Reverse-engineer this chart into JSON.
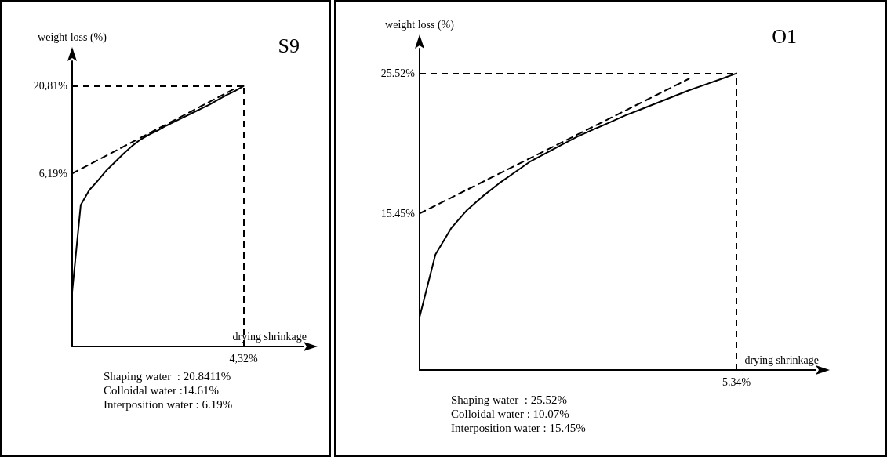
{
  "chart_data": [
    {
      "type": "line",
      "title": "S9",
      "xlabel": "drying shrinkage",
      "ylabel": "weight loss (%)",
      "categories": [
        null,
        null,
        null,
        null,
        null,
        null,
        null,
        null,
        null,
        null,
        null,
        null,
        null,
        null,
        null,
        null,
        null,
        null,
        null,
        null,
        null,
        null,
        null,
        null,
        null,
        null,
        null,
        null
      ],
      "ylim": [
        -22.8,
        25
      ],
      "yticks": [
        {
          "value": 6.19,
          "label": "6,19%"
        },
        {
          "value": 20.81,
          "label": "20,81%"
        }
      ],
      "grid": false,
      "marker": "none",
      "series": [
        {
          "color": "#000000",
          "values": [
            -13.7,
            0.9,
            3.4,
            5.0,
            6.7,
            8.1,
            9.5,
            10.8,
            11.9,
            12.7,
            13.4,
            14.2,
            14.9,
            15.6,
            16.3,
            17.0,
            17.7,
            18.5,
            19.3,
            20.0,
            20.81,
            null,
            null,
            null,
            null,
            null,
            null,
            null
          ]
        },
        {
          "color": "#000000",
          "line_style": "dashed",
          "values": [
            6.19,
            null,
            null,
            null,
            null,
            null,
            null,
            null,
            null,
            null,
            null,
            null,
            null,
            null,
            null,
            null,
            null,
            null,
            null,
            20.41,
            null,
            null,
            null,
            null,
            null,
            null,
            null,
            null
          ]
        }
      ],
      "ref_lines": [
        {
          "axis": "y",
          "value": 20.81,
          "color": "#000000",
          "line_style": "dashed"
        },
        {
          "axis": "x",
          "color": "#000000",
          "line_style": "dashed"
        }
      ],
      "annotations": [
        {
          "text": "4,32%"
        },
        "Shaping water  : 20.8411%",
        "Colloidal water :14.61%",
        "Interposition water : 6.19%"
      ]
    },
    {
      "type": "line",
      "title": "O1",
      "xlabel": "drying shrinkage",
      "ylabel": "weight loss (%)",
      "categories": [
        null,
        null,
        null,
        null,
        null,
        null,
        null,
        null,
        null,
        null,
        null,
        null,
        null,
        null,
        null,
        null,
        null,
        null,
        null,
        null,
        null,
        null,
        null,
        null,
        null,
        null
      ],
      "ylim": [
        4.2,
        27.3
      ],
      "yticks": [
        {
          "value": 15.45,
          "label": "15.45%"
        },
        {
          "value": 25.52,
          "label": "25.52%"
        }
      ],
      "grid": false,
      "marker": "none",
      "series": [
        {
          "color": "#000000",
          "values": [
            8.0,
            12.5,
            14.4,
            15.7,
            16.7,
            17.6,
            18.4,
            19.2,
            19.8,
            20.4,
            21.0,
            21.5,
            22.0,
            22.5,
            22.95,
            23.4,
            23.85,
            24.3,
            24.7,
            25.1,
            25.52,
            null,
            null,
            null,
            null,
            null
          ]
        },
        {
          "color": "#000000",
          "line_style": "dashed",
          "values": [
            15.45,
            null,
            null,
            null,
            null,
            null,
            null,
            null,
            null,
            null,
            null,
            null,
            null,
            null,
            null,
            null,
            null,
            25.13,
            null,
            null,
            null,
            null,
            null,
            null,
            null,
            null
          ]
        }
      ],
      "ref_lines": [
        {
          "axis": "y",
          "value": 25.52,
          "color": "#000000",
          "line_style": "dashed"
        },
        {
          "axis": "x",
          "color": "#000000",
          "line_style": "dashed"
        }
      ],
      "annotations": [
        {
          "text": "5.34%"
        },
        "Shaping water  : 25.52%",
        "Colloidal water : 10.07%",
        "Interposition water : 15.45%"
      ]
    }
  ]
}
